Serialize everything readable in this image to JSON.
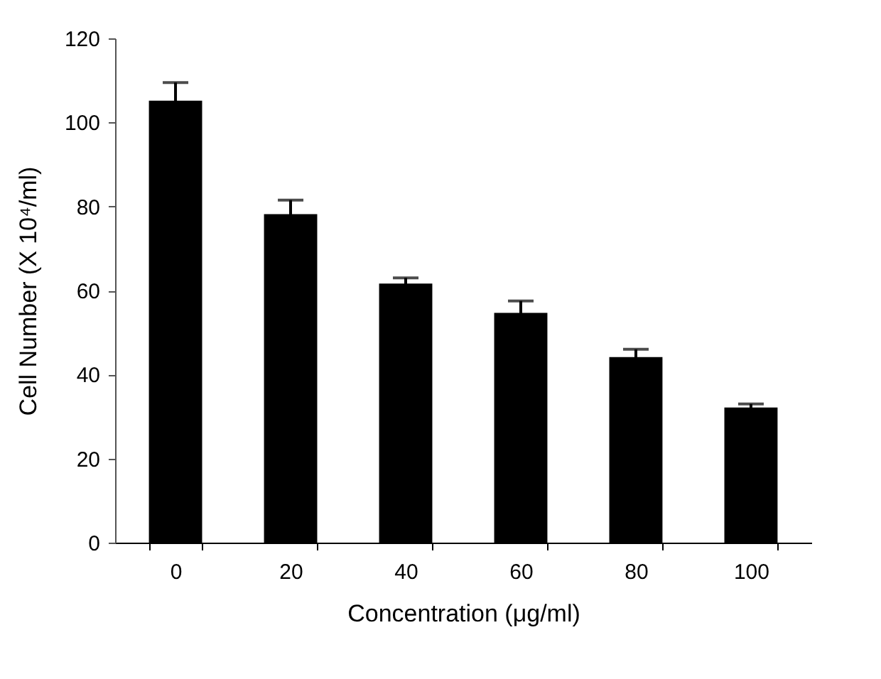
{
  "chart_data": {
    "type": "bar",
    "categories": [
      "0",
      "20",
      "40",
      "60",
      "80",
      "100"
    ],
    "values": [
      105,
      78,
      61.5,
      54.5,
      44,
      32
    ],
    "errors": [
      [
        105,
        109.5
      ],
      [
        78,
        81.5
      ],
      [
        61.5,
        63
      ],
      [
        54.5,
        57.5
      ],
      [
        44,
        46
      ],
      [
        32,
        33
      ]
    ],
    "color": "#000000",
    "xlabel": "Concentration (μg/ml)",
    "ylabel": "Cell Number (X 10⁴/ml)",
    "ylim": [
      0,
      120
    ],
    "yticks": [
      0,
      20,
      40,
      60,
      80,
      100,
      120
    ],
    "grid": false
  }
}
